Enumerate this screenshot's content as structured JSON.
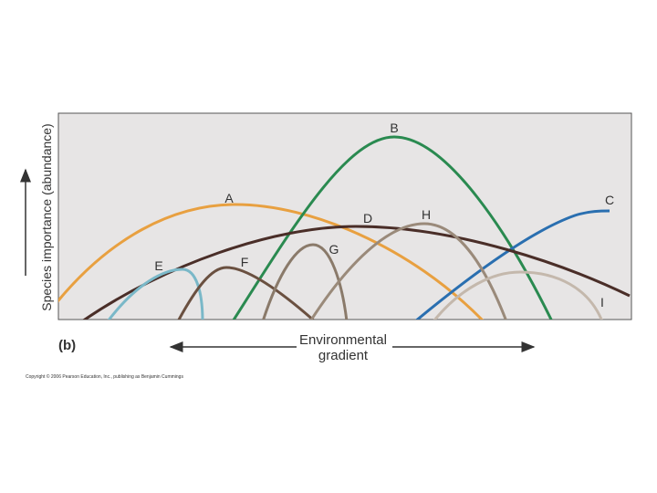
{
  "axis": {
    "y_label": "Species importance (abundance)",
    "x_label": [
      "Environmental",
      "gradient"
    ]
  },
  "panel_label": "(b)",
  "curves": [
    {
      "label": "A"
    },
    {
      "label": "B"
    },
    {
      "label": "C"
    },
    {
      "label": "D"
    },
    {
      "label": "E"
    },
    {
      "label": "F"
    },
    {
      "label": "G"
    },
    {
      "label": "H"
    },
    {
      "label": "I"
    }
  ],
  "copyright": "Copyright © 2006 Pearson Education, Inc., publishing as Benjamin Cummings"
}
